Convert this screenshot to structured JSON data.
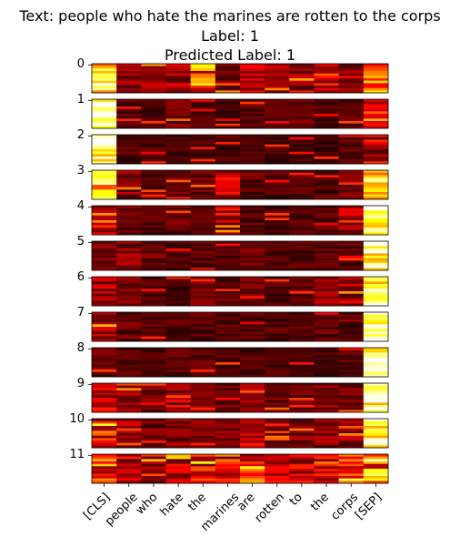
{
  "chart_data": {
    "type": "heatmap",
    "title_lines": [
      "Text: people who hate the marines are rotten to the corps",
      "Label: 1",
      "Predicted Label: 1"
    ],
    "tokens": [
      "[CLS]",
      "people",
      "who",
      "hate",
      "the",
      "marines",
      "are",
      "rotten",
      "to",
      "the",
      "corps",
      "[SEP]"
    ],
    "layers": [
      "0",
      "1",
      "2",
      "3",
      "4",
      "5",
      "6",
      "7",
      "8",
      "9",
      "10",
      "11"
    ],
    "heads_per_layer": 12,
    "colormap": "hot",
    "token_attention_by_layer": [
      [
        0.85,
        0.2,
        0.22,
        0.25,
        0.55,
        0.2,
        0.25,
        0.22,
        0.22,
        0.35,
        0.18,
        0.5
      ],
      [
        0.95,
        0.12,
        0.1,
        0.15,
        0.12,
        0.1,
        0.12,
        0.12,
        0.15,
        0.12,
        0.12,
        0.3
      ],
      [
        0.95,
        0.12,
        0.1,
        0.1,
        0.1,
        0.12,
        0.1,
        0.1,
        0.1,
        0.1,
        0.12,
        0.3
      ],
      [
        0.8,
        0.2,
        0.12,
        0.15,
        0.15,
        0.3,
        0.15,
        0.12,
        0.12,
        0.12,
        0.15,
        0.85
      ],
      [
        0.3,
        0.15,
        0.12,
        0.15,
        0.12,
        0.3,
        0.12,
        0.12,
        0.12,
        0.12,
        0.25,
        0.98
      ],
      [
        0.2,
        0.2,
        0.15,
        0.12,
        0.12,
        0.12,
        0.15,
        0.12,
        0.12,
        0.12,
        0.12,
        0.95
      ],
      [
        0.25,
        0.18,
        0.12,
        0.12,
        0.15,
        0.12,
        0.18,
        0.12,
        0.15,
        0.2,
        0.25,
        0.95
      ],
      [
        0.25,
        0.15,
        0.12,
        0.12,
        0.12,
        0.12,
        0.12,
        0.12,
        0.12,
        0.15,
        0.15,
        0.97
      ],
      [
        0.15,
        0.12,
        0.12,
        0.12,
        0.12,
        0.12,
        0.12,
        0.12,
        0.12,
        0.12,
        0.12,
        0.97
      ],
      [
        0.3,
        0.2,
        0.15,
        0.2,
        0.15,
        0.15,
        0.2,
        0.15,
        0.15,
        0.2,
        0.2,
        0.95
      ],
      [
        0.4,
        0.22,
        0.18,
        0.2,
        0.18,
        0.18,
        0.28,
        0.18,
        0.18,
        0.2,
        0.22,
        0.95
      ],
      [
        0.5,
        0.3,
        0.25,
        0.28,
        0.35,
        0.4,
        0.45,
        0.3,
        0.3,
        0.4,
        0.4,
        0.7
      ]
    ]
  }
}
